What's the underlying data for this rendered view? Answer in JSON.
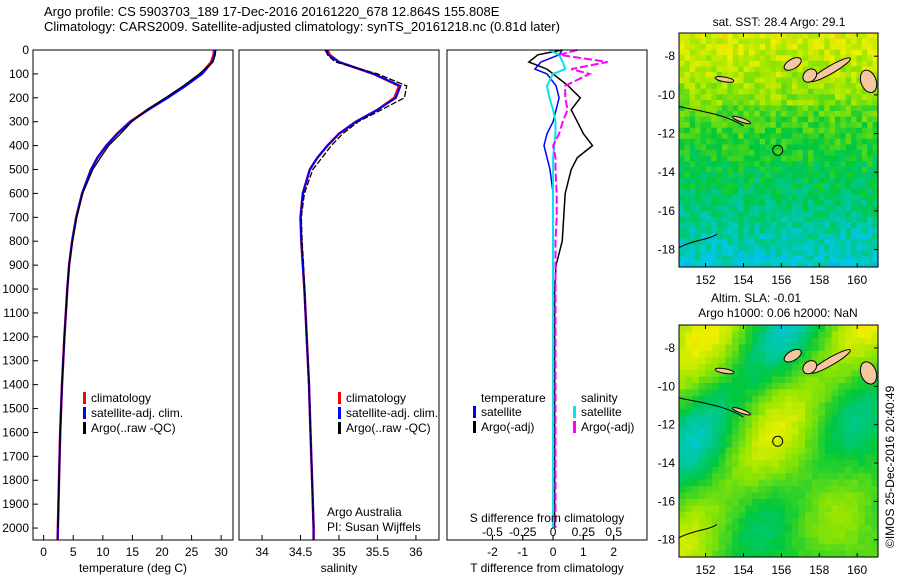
{
  "title_line1": "Argo profile: CS 5903703_189 17-Dec-2016 20161220_678 12.864S 155.808E",
  "title_line2": "Climatology: CARS2009. Satellite-adjusted climatology: synTS_20161218.nc (0.81d later)",
  "credit": "©IMOS 25-Dec-2016 20:40:49",
  "colors": {
    "climatology": "#ff0000",
    "satellite": "#0000ff",
    "argo": "#000000",
    "sal_satellite": "#00e5ee",
    "sal_argo": "#ff00ff"
  },
  "chart_data": [
    {
      "type": "line",
      "name": "temperature",
      "xlabel": "temperature (deg C)",
      "xlim": [
        -1.8,
        32
      ],
      "ylim": [
        2050,
        0
      ],
      "xticks": [
        0,
        5,
        10,
        15,
        20,
        25,
        30
      ],
      "xtick_labels": [
        "0",
        "5",
        "10",
        "15",
        "20",
        "25",
        "30"
      ],
      "yticks": [
        0,
        100,
        200,
        300,
        400,
        500,
        600,
        700,
        800,
        900,
        1000,
        1100,
        1200,
        1300,
        1400,
        1500,
        1600,
        1700,
        1800,
        1900,
        2000
      ],
      "ytick_labels": [
        "0",
        "100",
        "200",
        "300",
        "400",
        "500",
        "600",
        "700",
        "800",
        "900",
        "1000",
        "1100",
        "1200",
        "1300",
        "1400",
        "1500",
        "1600",
        "1700",
        "1800",
        "1900",
        "2000"
      ],
      "legend": [
        "climatology",
        "satellite-adj. clim.",
        "Argo(..raw -QC)"
      ],
      "depth": [
        0,
        20,
        50,
        100,
        150,
        200,
        250,
        300,
        350,
        400,
        450,
        500,
        600,
        700,
        800,
        900,
        1000,
        1200,
        1400,
        1600,
        1800,
        2000,
        2050
      ],
      "series": [
        {
          "name": "climatology",
          "values": [
            28.8,
            28.7,
            28.3,
            26.6,
            23.8,
            20.8,
            17.6,
            14.6,
            12.4,
            10.6,
            9.1,
            8.0,
            6.5,
            5.5,
            4.8,
            4.3,
            4.0,
            3.5,
            3.1,
            2.8,
            2.6,
            2.4,
            2.35
          ]
        },
        {
          "name": "satellite-adj. clim.",
          "values": [
            29.0,
            28.9,
            28.5,
            26.8,
            24.0,
            21.0,
            17.7,
            14.7,
            12.5,
            10.6,
            9.1,
            8.0,
            6.5,
            5.5,
            4.8,
            4.3,
            4.0,
            3.5,
            3.1,
            2.8,
            2.6,
            2.4,
            2.35
          ]
        },
        {
          "name": "Argo(..raw -QC)",
          "values": [
            29.1,
            29.0,
            28.6,
            26.3,
            23.6,
            20.6,
            17.4,
            14.9,
            13.0,
            11.0,
            9.6,
            8.3,
            6.6,
            5.6,
            4.9,
            4.3,
            4.0,
            3.5,
            3.1,
            2.8,
            2.6,
            2.4,
            null
          ]
        }
      ]
    },
    {
      "type": "line",
      "name": "salinity",
      "xlabel": "salinity",
      "xlim": [
        33.7,
        36.3
      ],
      "ylim": [
        2050,
        0
      ],
      "xticks": [
        34,
        34.5,
        35,
        35.5,
        36
      ],
      "xtick_labels": [
        "34",
        "34.5",
        "35",
        "35.5",
        "36"
      ],
      "legend": [
        "climatology",
        "satellite-adj. clim.",
        "Argo(..raw -QC)"
      ],
      "annotation": [
        "Argo Australia",
        "PI: Susan Wijffels"
      ],
      "depth": [
        0,
        20,
        50,
        100,
        150,
        200,
        250,
        300,
        350,
        400,
        450,
        500,
        600,
        700,
        800,
        900,
        1000,
        1200,
        1400,
        1600,
        1800,
        2000,
        2050
      ],
      "series": [
        {
          "name": "climatology",
          "values": [
            34.85,
            34.88,
            35.0,
            35.45,
            35.78,
            35.72,
            35.5,
            35.22,
            35.0,
            34.85,
            34.72,
            34.62,
            34.53,
            34.5,
            34.51,
            34.53,
            34.55,
            34.58,
            34.61,
            34.63,
            34.65,
            34.67,
            34.67
          ]
        },
        {
          "name": "satellite-adj. clim.",
          "values": [
            34.82,
            34.86,
            35.0,
            35.45,
            35.8,
            35.74,
            35.5,
            35.22,
            35.0,
            34.85,
            34.72,
            34.62,
            34.53,
            34.5,
            34.51,
            34.53,
            34.55,
            34.58,
            34.61,
            34.63,
            34.65,
            34.67,
            34.67
          ]
        },
        {
          "name": "Argo(..raw -QC)",
          "values": [
            34.85,
            34.85,
            34.95,
            35.5,
            35.88,
            35.85,
            35.55,
            35.25,
            35.05,
            34.9,
            34.78,
            34.66,
            34.55,
            34.51,
            34.52,
            34.54,
            34.55,
            34.58,
            34.61,
            34.63,
            34.65,
            34.67,
            null
          ]
        }
      ]
    },
    {
      "type": "line",
      "name": "differences",
      "xlabel": "T difference from climatology",
      "xlabel_top": "S difference from climatology",
      "xlim": [
        -3.5,
        3.1
      ],
      "ylim": [
        2050,
        0
      ],
      "xticks": [
        -2,
        -1,
        0,
        1,
        2
      ],
      "xtick_labels": [
        "-2",
        "-1",
        "0",
        "1",
        "2"
      ],
      "s_ticks": [
        -0.5,
        -0.25,
        0,
        0.25,
        0.5
      ],
      "s_tick_labels": [
        "-0.5",
        "-0.25",
        "0",
        "0.25",
        "0.5"
      ],
      "legend_headers": [
        "temperature",
        "salinity"
      ],
      "legend": [
        "satellite",
        "Argo(-adj)",
        "satellite",
        "Argo(-adj)"
      ],
      "depth": [
        0,
        20,
        50,
        80,
        100,
        150,
        200,
        250,
        300,
        350,
        400,
        450,
        500,
        600,
        700,
        800,
        900,
        1000,
        1200,
        1400,
        1600,
        1800,
        2000
      ],
      "series": [
        {
          "name": "T satellite",
          "values": [
            0.3,
            0.2,
            -0.4,
            -0.6,
            -0.2,
            0.1,
            0.2,
            0.1,
            0.0,
            -0.2,
            -0.3,
            -0.2,
            -0.1,
            0.0,
            0.0,
            0.0,
            0.0,
            0.0,
            0.0,
            0.0,
            0.0,
            0.0,
            0.0
          ]
        },
        {
          "name": "T Argo(-adj)",
          "values": [
            0.3,
            -0.5,
            -0.8,
            -0.2,
            0.0,
            0.5,
            0.9,
            0.6,
            0.8,
            1.0,
            1.3,
            0.8,
            0.6,
            0.4,
            0.35,
            0.3,
            0.1,
            0.05,
            0.05,
            0.05,
            0.05,
            0.05,
            0.05
          ]
        },
        {
          "name": "S satellite",
          "values": [
            -0.03,
            0.05,
            0.08,
            0.1,
            0.0,
            -0.05,
            -0.03,
            0.0,
            0.02,
            0.02,
            0.01,
            0.0,
            0.0,
            0.0,
            0.0,
            0.0,
            0.0,
            0.0,
            0.0,
            0.0,
            0.0,
            0.0,
            0.0
          ]
        },
        {
          "name": "S Argo(-adj)",
          "values": [
            0.2,
            0.05,
            0.45,
            0.15,
            0.3,
            0.1,
            0.1,
            0.12,
            0.08,
            0.05,
            0.0,
            0.02,
            0.02,
            0.03,
            0.03,
            0.02,
            0.02,
            0.02,
            0.02,
            0.02,
            0.02,
            0.02,
            0.02
          ]
        }
      ]
    },
    {
      "type": "heatmap",
      "name": "sst-map",
      "title": "sat. SST: 28.4 Argo: 29.1",
      "xticks": [
        152,
        154,
        156,
        158,
        160
      ],
      "xtick_labels": [
        "152",
        "154",
        "156",
        "158",
        "160"
      ],
      "yticks": [
        -8,
        -10,
        -12,
        -14,
        -16,
        -18
      ],
      "ytick_labels": [
        "-8",
        "-10",
        "-12",
        "-14",
        "-16",
        "-18"
      ],
      "xlim": [
        150.6,
        161.1
      ],
      "ylim": [
        -18.9,
        -6.8
      ],
      "marker": [
        155.808,
        -12.864
      ]
    },
    {
      "type": "heatmap",
      "name": "sla-map",
      "title": "Altim. SLA: -0.01",
      "subtitle": "Argo h1000: 0.06 h2000: NaN",
      "xticks": [
        152,
        154,
        156,
        158,
        160
      ],
      "xtick_labels": [
        "152",
        "154",
        "156",
        "158",
        "160"
      ],
      "yticks": [
        -8,
        -10,
        -12,
        -14,
        -16,
        -18
      ],
      "ytick_labels": [
        "-8",
        "-10",
        "-12",
        "-14",
        "-16",
        "-18"
      ],
      "xlim": [
        150.6,
        161.1
      ],
      "ylim": [
        -18.9,
        -6.8
      ],
      "marker": [
        155.808,
        -12.864
      ]
    }
  ]
}
